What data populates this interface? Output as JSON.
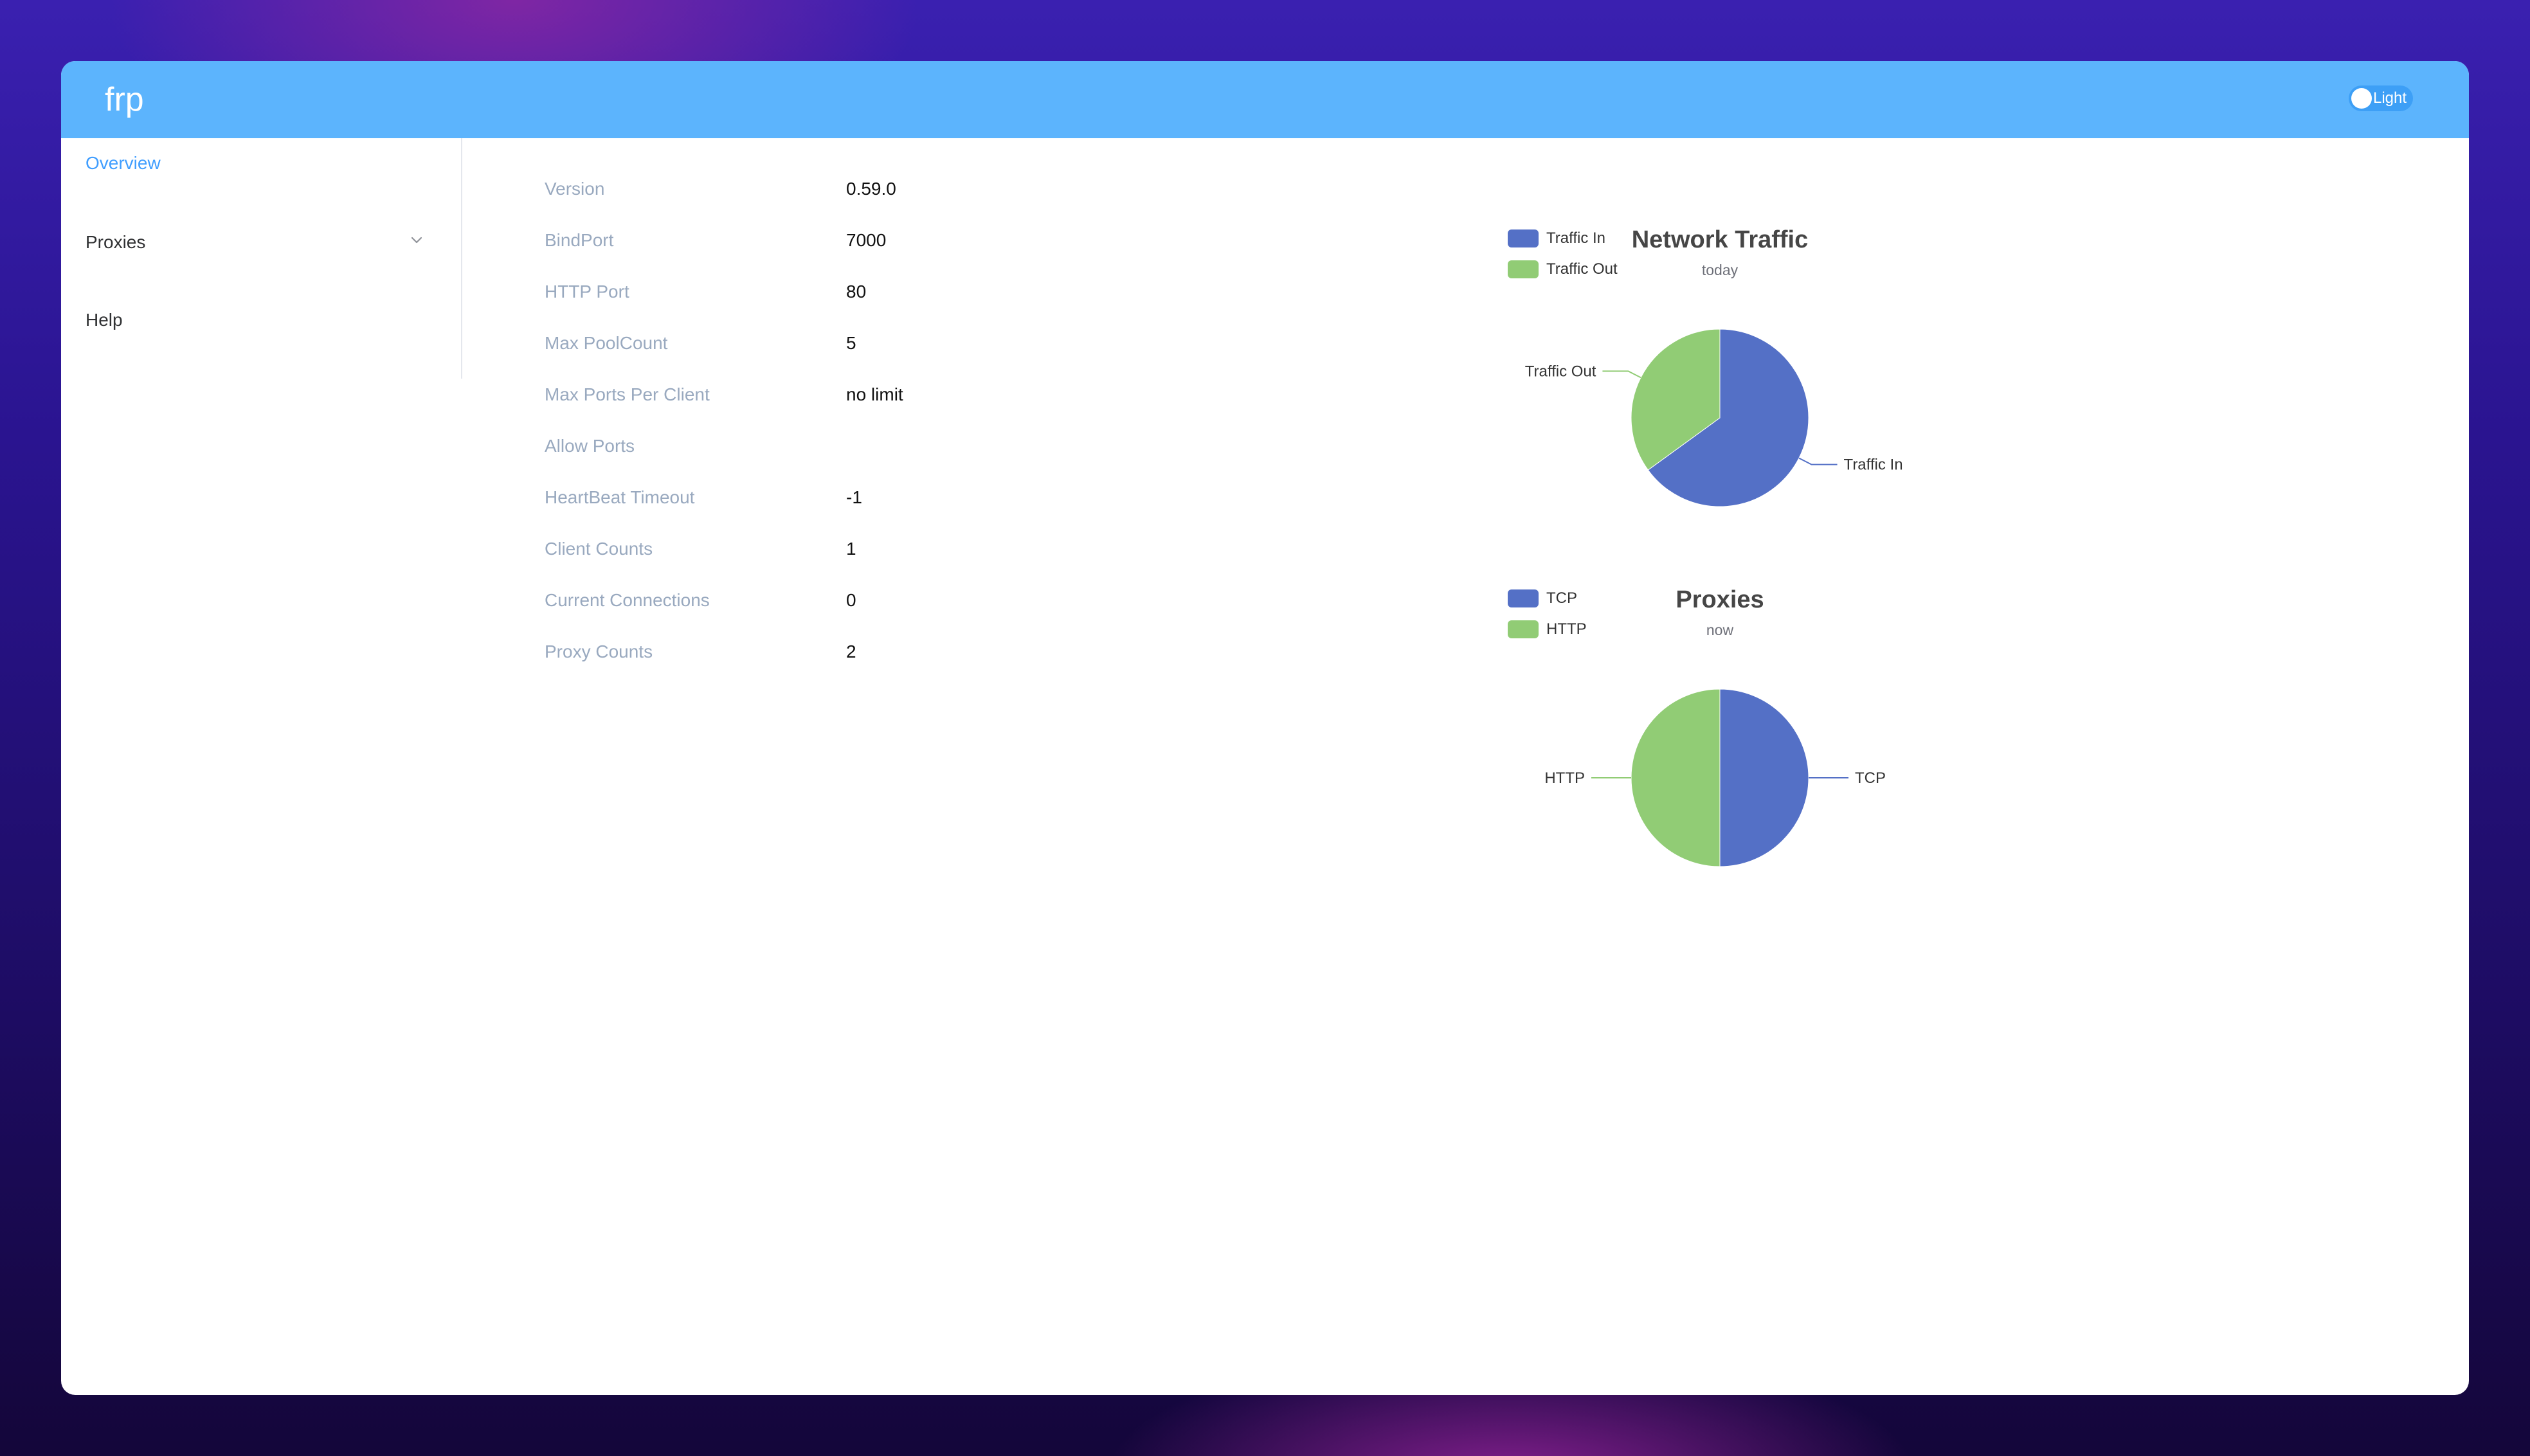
{
  "app": {
    "title": "frp",
    "theme_label": "Light"
  },
  "sidebar": {
    "items": [
      {
        "label": "Overview"
      },
      {
        "label": "Proxies"
      },
      {
        "label": "Help"
      }
    ]
  },
  "overview": {
    "rows": [
      {
        "label": "Version",
        "value": "0.59.0"
      },
      {
        "label": "BindPort",
        "value": "7000"
      },
      {
        "label": "HTTP Port",
        "value": "80"
      },
      {
        "label": "Max PoolCount",
        "value": "5"
      },
      {
        "label": "Max Ports Per Client",
        "value": "no limit"
      },
      {
        "label": "Allow Ports",
        "value": ""
      },
      {
        "label": "HeartBeat Timeout",
        "value": "-1"
      },
      {
        "label": "Client Counts",
        "value": "1"
      },
      {
        "label": "Current Connections",
        "value": "0"
      },
      {
        "label": "Proxy Counts",
        "value": "2"
      }
    ]
  },
  "colors": {
    "header": "#5cb4fd",
    "active_menu": "#409eff",
    "series_blue": "#5470c6",
    "series_green": "#91cc75"
  },
  "chart_data": [
    {
      "type": "pie",
      "title": "Network Traffic",
      "subtitle": "today",
      "legend_position": "top-left",
      "categories": [
        "Traffic In",
        "Traffic Out"
      ],
      "values": [
        65,
        35
      ],
      "colors": [
        "#5470c6",
        "#91cc75"
      ]
    },
    {
      "type": "pie",
      "title": "Proxies",
      "subtitle": "now",
      "legend_position": "top-left",
      "categories": [
        "TCP",
        "HTTP"
      ],
      "values": [
        1,
        1
      ],
      "colors": [
        "#5470c6",
        "#91cc75"
      ]
    }
  ]
}
